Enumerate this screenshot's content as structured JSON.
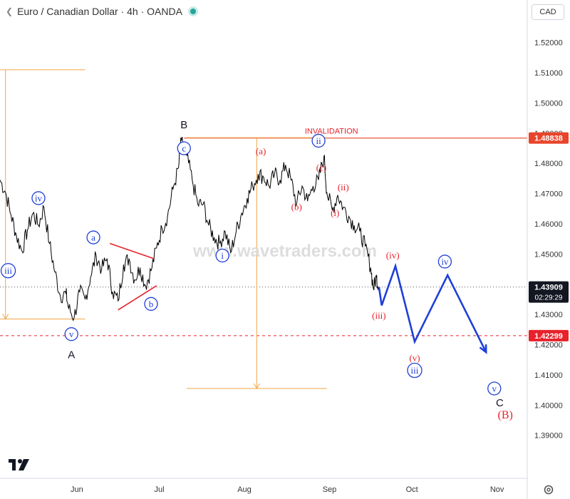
{
  "header": {
    "title": "Euro / Canadian Dollar · 4h · OANDA",
    "currency": "CAD"
  },
  "watermark": "www.wavetraders.com",
  "colors": {
    "price": "#000000",
    "blue": "#1f3fd6",
    "red": "#e8212b",
    "orange": "#f2a545",
    "invalidation_line": "#e8452b"
  },
  "chart_data": {
    "type": "line",
    "instrument": "EURCAD",
    "timeframe": "4h",
    "ylim": [
      1.376,
      1.527
    ],
    "y_ticks": [
      1.39,
      1.4,
      1.41,
      1.42,
      1.43,
      1.44,
      1.45,
      1.46,
      1.47,
      1.48,
      1.49,
      1.5,
      1.51,
      1.52
    ],
    "y_tick_labels": [
      "1.39000",
      "1.40000",
      "1.41000",
      "1.42000",
      "1.43000",
      "1.44000",
      "1.45000",
      "1.46000",
      "1.47000",
      "1.48000",
      "1.49000",
      "1.50000",
      "1.51000",
      "1.52000"
    ],
    "x_ticks": [
      "Jun",
      "Jul",
      "Aug",
      "Sep",
      "Oct",
      "Nov"
    ],
    "x_tick_days": [
      31,
      61,
      92,
      123,
      153,
      184
    ],
    "xlim_days": [
      3,
      195
    ],
    "price_series": [
      [
        3,
        1.4745
      ],
      [
        5,
        1.4705
      ],
      [
        7,
        1.463
      ],
      [
        9,
        1.456
      ],
      [
        11,
        1.451
      ],
      [
        13,
        1.458
      ],
      [
        15,
        1.4635
      ],
      [
        17,
        1.4595
      ],
      [
        19,
        1.4655
      ],
      [
        21,
        1.4535
      ],
      [
        23,
        1.444
      ],
      [
        25,
        1.436
      ],
      [
        27,
        1.437
      ],
      [
        28,
        1.432
      ],
      [
        30,
        1.429
      ],
      [
        32,
        1.4375
      ],
      [
        34,
        1.435
      ],
      [
        36,
        1.4425
      ],
      [
        38,
        1.4495
      ],
      [
        40,
        1.445
      ],
      [
        42,
        1.4485
      ],
      [
        44,
        1.4375
      ],
      [
        46,
        1.4345
      ],
      [
        48,
        1.4465
      ],
      [
        50,
        1.4485
      ],
      [
        52,
        1.4415
      ],
      [
        54,
        1.4455
      ],
      [
        56,
        1.4395
      ],
      [
        58,
        1.4445
      ],
      [
        60,
        1.452
      ],
      [
        62,
        1.4585
      ],
      [
        64,
        1.4625
      ],
      [
        66,
        1.4715
      ],
      [
        68,
        1.4785
      ],
      [
        69,
        1.4875
      ],
      [
        71,
        1.4825
      ],
      [
        73,
        1.4745
      ],
      [
        75,
        1.4665
      ],
      [
        77,
        1.4665
      ],
      [
        79,
        1.4595
      ],
      [
        81,
        1.4555
      ],
      [
        83,
        1.4535
      ],
      [
        85,
        1.4575
      ],
      [
        87,
        1.4505
      ],
      [
        89,
        1.4575
      ],
      [
        91,
        1.4635
      ],
      [
        93,
        1.4685
      ],
      [
        95,
        1.4725
      ],
      [
        97,
        1.4765
      ],
      [
        99,
        1.4755
      ],
      [
        101,
        1.4725
      ],
      [
        103,
        1.4765
      ],
      [
        105,
        1.4745
      ],
      [
        107,
        1.4795
      ],
      [
        109,
        1.4745
      ],
      [
        111,
        1.4665
      ],
      [
        113,
        1.4725
      ],
      [
        115,
        1.4675
      ],
      [
        117,
        1.4725
      ],
      [
        119,
        1.4745
      ],
      [
        121,
        1.4825
      ],
      [
        122,
        1.4705
      ],
      [
        124,
        1.4645
      ],
      [
        126,
        1.4695
      ],
      [
        128,
        1.4655
      ],
      [
        130,
        1.4625
      ],
      [
        132,
        1.4595
      ],
      [
        134,
        1.4575
      ],
      [
        136,
        1.4525
      ],
      [
        138,
        1.4455
      ],
      [
        139,
        1.4385
      ],
      [
        140,
        1.4425
      ],
      [
        141,
        1.4391
      ]
    ],
    "projection": [
      [
        141,
        1.4391
      ],
      [
        142,
        1.433
      ],
      [
        147,
        1.446
      ],
      [
        154,
        1.421
      ],
      [
        166,
        1.443
      ],
      [
        180,
        1.4175
      ]
    ],
    "levels": [
      {
        "label": "INVALIDATION",
        "price": 1.48838,
        "price_label": "1.48838"
      },
      {
        "price": 1.42299,
        "price_label": "1.42299"
      }
    ],
    "last_price": {
      "price": 1.43909,
      "price_label": "1.43909",
      "countdown": "02:29:29"
    },
    "fib_measures": [
      {
        "days": [
          3,
          34
        ],
        "from": 1.511,
        "to": 1.4285
      },
      {
        "days": [
          71,
          122
        ],
        "from": 1.4885,
        "to": 1.4055
      }
    ],
    "wave_labels": [
      {
        "text": "B",
        "style": "plain",
        "day": 70,
        "price": 1.4925
      },
      {
        "text": "c",
        "style": "circle-blue",
        "day": 70,
        "price": 1.485
      },
      {
        "text": "ii",
        "style": "circle-blue",
        "day": 119,
        "price": 1.4875
      },
      {
        "text": "(a)",
        "style": "red",
        "day": 98,
        "price": 1.484
      },
      {
        "text": "(c)",
        "style": "red",
        "day": 120,
        "price": 1.4785
      },
      {
        "text": "(ii)",
        "style": "red",
        "day": 128,
        "price": 1.472
      },
      {
        "text": "(b)",
        "style": "red",
        "day": 111,
        "price": 1.4655
      },
      {
        "text": "(i)",
        "style": "red",
        "day": 125,
        "price": 1.4635
      },
      {
        "text": "i",
        "style": "circle-blue",
        "day": 84,
        "price": 1.4495
      },
      {
        "text": "iv",
        "style": "circle-blue",
        "day": 17,
        "price": 1.4685
      },
      {
        "text": "iii",
        "style": "circle-blue",
        "day": 6,
        "price": 1.4445
      },
      {
        "text": "a",
        "style": "circle-blue",
        "day": 37,
        "price": 1.4555
      },
      {
        "text": "b",
        "style": "circle-blue",
        "day": 58,
        "price": 1.4335
      },
      {
        "text": "v",
        "style": "circle-blue",
        "day": 29,
        "price": 1.4235
      },
      {
        "text": "A",
        "style": "plain",
        "day": 29,
        "price": 1.4165
      },
      {
        "text": "(iv)",
        "style": "red",
        "day": 146,
        "price": 1.4495
      },
      {
        "text": "(iii)",
        "style": "red",
        "day": 141,
        "price": 1.4295
      },
      {
        "text": "(v)",
        "style": "red",
        "day": 154,
        "price": 1.4155
      },
      {
        "text": "iii",
        "style": "circle-blue",
        "day": 154,
        "price": 1.4115
      },
      {
        "text": "iv",
        "style": "circle-blue",
        "day": 165,
        "price": 1.4475
      },
      {
        "text": "v",
        "style": "circle-blue",
        "day": 183,
        "price": 1.4055
      },
      {
        "text": "C",
        "style": "plain",
        "day": 185,
        "price": 1.4005
      },
      {
        "text": "(B)",
        "style": "red-big",
        "day": 187,
        "price": 1.3965
      }
    ],
    "triangle_lines": [
      {
        "from": [
          43,
          1.4535
        ],
        "to": [
          59,
          1.4485
        ]
      },
      {
        "from": [
          46,
          1.4315
        ],
        "to": [
          60,
          1.4395
        ]
      }
    ]
  }
}
